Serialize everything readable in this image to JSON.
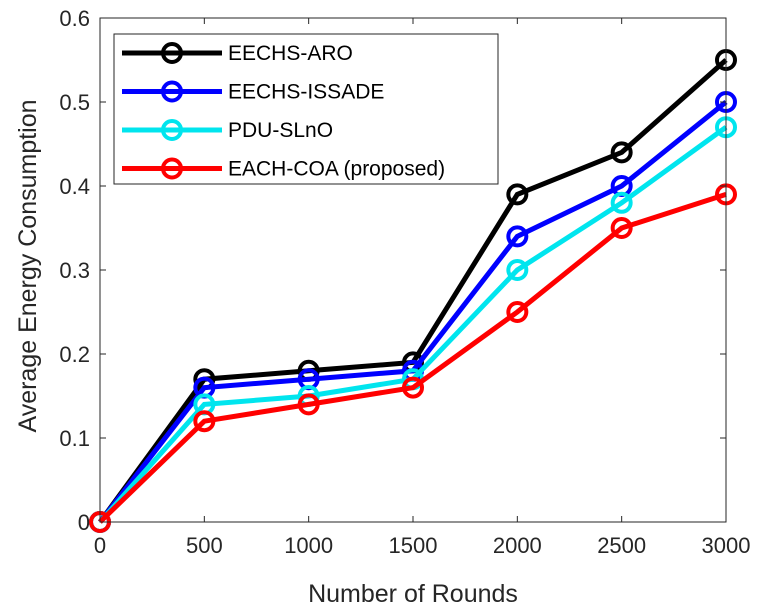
{
  "chart_data": {
    "type": "line",
    "title": "",
    "xlabel": "Number of Rounds",
    "ylabel": "Average Energy Consumption",
    "x": [
      0,
      500,
      1000,
      1500,
      2000,
      2500,
      3000
    ],
    "xlim": [
      0,
      3000
    ],
    "ylim": [
      0,
      0.6
    ],
    "xticks": [
      "0",
      "500",
      "1000",
      "1500",
      "2000",
      "2500",
      "3000"
    ],
    "yticks": [
      "0",
      "0.1",
      "0.2",
      "0.3",
      "0.4",
      "0.5",
      "0.6"
    ],
    "grid": false,
    "legend_position": "top-left",
    "marker": "circle",
    "series": [
      {
        "name": "EECHS-ARO",
        "color": "#000000",
        "values": [
          0,
          0.17,
          0.18,
          0.19,
          0.39,
          0.44,
          0.55
        ]
      },
      {
        "name": "EECHS-ISSADE",
        "color": "#0000ff",
        "values": [
          0,
          0.16,
          0.17,
          0.18,
          0.34,
          0.4,
          0.5
        ]
      },
      {
        "name": "PDU-SLnO",
        "color": "#00e5ee",
        "values": [
          0,
          0.14,
          0.15,
          0.17,
          0.3,
          0.38,
          0.47
        ]
      },
      {
        "name": "EACH-COA (proposed)",
        "color": "#ff0000",
        "values": [
          0,
          0.12,
          0.14,
          0.16,
          0.25,
          0.35,
          0.39
        ]
      }
    ]
  }
}
